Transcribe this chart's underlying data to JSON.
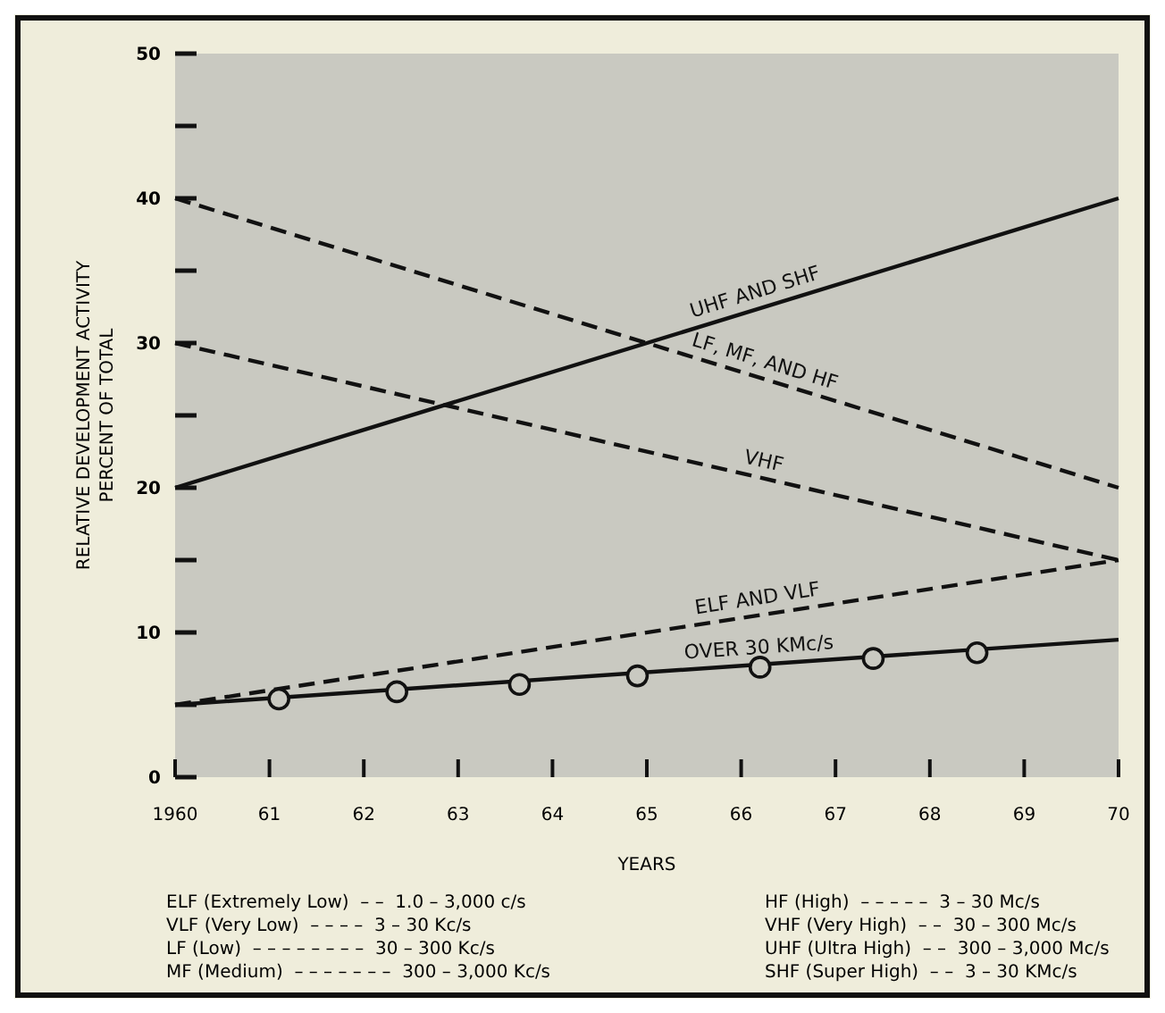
{
  "chart_data": {
    "type": "line",
    "xlabel": "YEARS",
    "ylabel": "RELATIVE DEVELOPMENT ACTIVITY\nPERCENT OF TOTAL",
    "xlim": [
      1960,
      1970
    ],
    "ylim": [
      0,
      50
    ],
    "xticks": [
      1960,
      {
        "value": 1961,
        "label": "61"
      },
      {
        "value": 1962,
        "label": "62"
      },
      {
        "value": 1963,
        "label": "63"
      },
      {
        "value": 1964,
        "label": "64"
      },
      {
        "value": 1965,
        "label": "65"
      },
      {
        "value": 1966,
        "label": "66"
      },
      {
        "value": 1967,
        "label": "67"
      },
      {
        "value": 1968,
        "label": "68"
      },
      {
        "value": 1969,
        "label": "69"
      },
      {
        "value": 1970,
        "label": "70"
      }
    ],
    "yticks": [
      0,
      {
        "value": 5,
        "label": null
      },
      10,
      {
        "value": 15,
        "label": null
      },
      20,
      {
        "value": 25,
        "label": null
      },
      30,
      {
        "value": 35,
        "label": null
      },
      40,
      {
        "value": 45,
        "label": null
      },
      50
    ],
    "grid": false,
    "series": [
      {
        "name": "UHF AND SHF",
        "color": "#111111",
        "x": [
          1960,
          1970
        ],
        "values": [
          20,
          40
        ],
        "line_style": "solid",
        "marker": "none"
      },
      {
        "name": "LF, MF, AND HF",
        "color": "#111111",
        "x": [
          1960,
          1970
        ],
        "values": [
          40,
          20
        ],
        "line_style": "dashed",
        "marker": "none"
      },
      {
        "name": "VHF",
        "color": "#111111",
        "x": [
          1960,
          1970
        ],
        "values": [
          30,
          15
        ],
        "line_style": "dashed",
        "marker": "none"
      },
      {
        "name": "ELF AND VLF",
        "color": "#111111",
        "x": [
          1960,
          1970
        ],
        "values": [
          5,
          15
        ],
        "line_style": "dashed",
        "marker": "none"
      },
      {
        "name": "OVER 30 KMc/s",
        "color": "#111111",
        "x": [
          1960,
          1970
        ],
        "values": [
          5,
          9.5
        ],
        "line_style": "solid",
        "marker": "none"
      },
      {
        "type": "scatter",
        "color": "#111111",
        "x": [
          1961.1,
          1962.35,
          1963.65,
          1964.9,
          1966.2,
          1967.4,
          1968.5
        ],
        "values": [
          5.4,
          5.9,
          6.4,
          7.0,
          7.6,
          8.2,
          8.6
        ],
        "marker": "circle"
      }
    ],
    "annotations": [
      "ELF (Extremely Low)  – –  1.0 – 3,000 c/s",
      "VLF (Very Low)  – – – –  3 – 30 Kc/s",
      "LF (Low)  – – – – – – – –  30 – 300 Kc/s",
      "MF (Medium)  – – – – – – –  300 – 3,000 Kc/s",
      "HF (High)  – – – – –  3 – 30 Mc/s",
      "VHF (Very High)  – –  30 – 300 Mc/s",
      "UHF (Ultra High)  – –  300 – 3,000 Mc/s",
      "SHF (Super High)  – –  3 – 30 KMc/s"
    ]
  }
}
